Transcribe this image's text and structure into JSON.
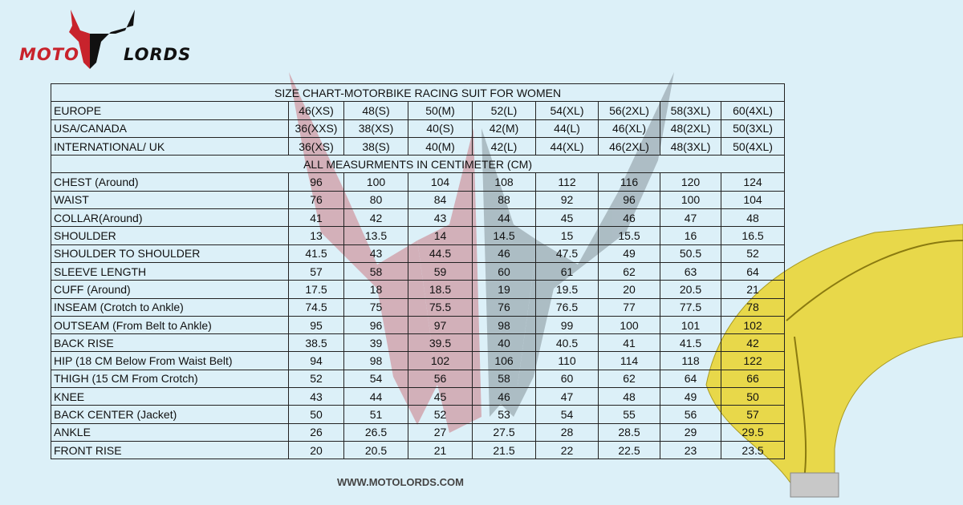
{
  "brand": {
    "left": "MOTO",
    "right": "LORDS",
    "red": "#c8232c",
    "black": "#111111"
  },
  "title": "SIZE CHART-MOTORBIKE RACING SUIT FOR WOMEN",
  "size_rows": [
    {
      "label": "EUROPE",
      "values": [
        "46(XS)",
        "48(S)",
        "50(M)",
        "52(L)",
        "54(XL)",
        "56(2XL)",
        "58(3XL)",
        "60(4XL)"
      ]
    },
    {
      "label": "USA/CANADA",
      "values": [
        "36(XXS)",
        "38(XS)",
        "40(S)",
        "42(M)",
        "44(L)",
        "46(XL)",
        "48(2XL)",
        "50(3XL)"
      ]
    },
    {
      "label": "INTERNATIONAL/ UK",
      "values": [
        "36(XS)",
        "38(S)",
        "40(M)",
        "42(L)",
        "44(XL)",
        "46(2XL)",
        "48(3XL)",
        "50(4XL)"
      ]
    }
  ],
  "units_note": "ALL MEASURMENTS IN CENTIMETER (CM)",
  "measure_rows": [
    {
      "label": "CHEST (Around)",
      "values": [
        "96",
        "100",
        "104",
        "108",
        "112",
        "116",
        "120",
        "124"
      ]
    },
    {
      "label": "WAIST",
      "values": [
        "76",
        "80",
        "84",
        "88",
        "92",
        "96",
        "100",
        "104"
      ]
    },
    {
      "label": "COLLAR(Around)",
      "values": [
        "41",
        "42",
        "43",
        "44",
        "45",
        "46",
        "47",
        "48"
      ]
    },
    {
      "label": "SHOULDER",
      "values": [
        "13",
        "13.5",
        "14",
        "14.5",
        "15",
        "15.5",
        "16",
        "16.5"
      ]
    },
    {
      "label": "SHOULDER TO SHOULDER",
      "values": [
        "41.5",
        "43",
        "44.5",
        "46",
        "47.5",
        "49",
        "50.5",
        "52"
      ]
    },
    {
      "label": "SLEEVE LENGTH",
      "values": [
        "57",
        "58",
        "59",
        "60",
        "61",
        "62",
        "63",
        "64"
      ]
    },
    {
      "label": "CUFF (Around)",
      "values": [
        "17.5",
        "18",
        "18.5",
        "19",
        "19.5",
        "20",
        "20.5",
        "21"
      ]
    },
    {
      "label": "INSEAM (Crotch to Ankle)",
      "values": [
        "74.5",
        "75",
        "75.5",
        "76",
        "76.5",
        "77",
        "77.5",
        "78"
      ]
    },
    {
      "label": "OUTSEAM (From Belt to Ankle)",
      "values": [
        "95",
        "96",
        "97",
        "98",
        "99",
        "100",
        "101",
        "102"
      ]
    },
    {
      "label": "BACK RISE",
      "values": [
        "38.5",
        "39",
        "39.5",
        "40",
        "40.5",
        "41",
        "41.5",
        "42"
      ]
    },
    {
      "label": "HIP (18 CM Below From Waist Belt)",
      "values": [
        "94",
        "98",
        "102",
        "106",
        "110",
        "114",
        "118",
        "122"
      ]
    },
    {
      "label": "THIGH (15 CM From Crotch)",
      "values": [
        "52",
        "54",
        "56",
        "58",
        "60",
        "62",
        "64",
        "66"
      ]
    },
    {
      "label": "KNEE",
      "values": [
        "43",
        "44",
        "45",
        "46",
        "47",
        "48",
        "49",
        "50"
      ]
    },
    {
      "label": "BACK CENTER (Jacket)",
      "values": [
        "50",
        "51",
        "52",
        "53",
        "54",
        "55",
        "56",
        "57"
      ]
    },
    {
      "label": "ANKLE",
      "values": [
        "26",
        "26.5",
        "27",
        "27.5",
        "28",
        "28.5",
        "29",
        "29.5"
      ]
    },
    {
      "label": "FRONT RISE",
      "values": [
        "20",
        "20.5",
        "21",
        "21.5",
        "22",
        "22.5",
        "23",
        "23.5"
      ]
    }
  ],
  "footer_url": "WWW.MOTOLORDS.COM"
}
